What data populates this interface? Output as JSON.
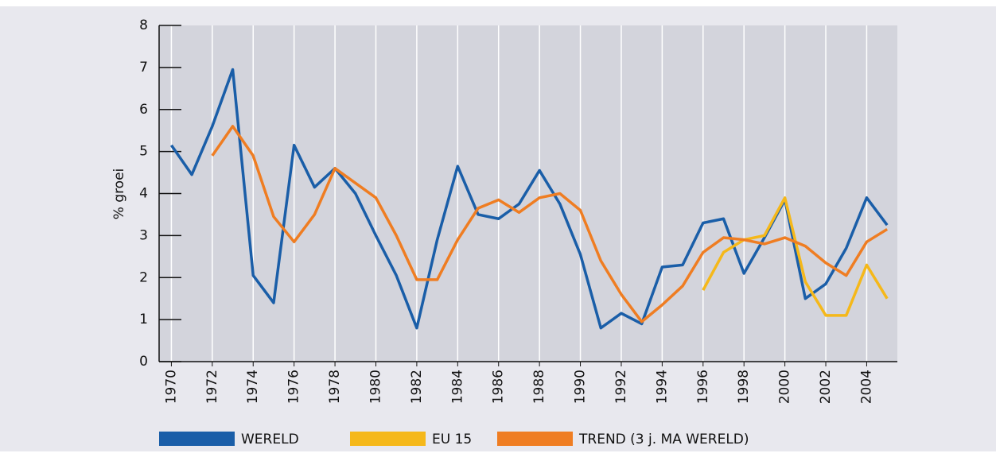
{
  "chart_data": {
    "type": "line",
    "y_label": "% groei",
    "x": [
      1970,
      1971,
      1972,
      1973,
      1974,
      1975,
      1976,
      1977,
      1978,
      1979,
      1980,
      1981,
      1982,
      1983,
      1984,
      1985,
      1986,
      1987,
      1988,
      1989,
      1990,
      1991,
      1992,
      1993,
      1994,
      1995,
      1996,
      1997,
      1998,
      1999,
      2000,
      2001,
      2002,
      2003,
      2004,
      2005
    ],
    "series": [
      {
        "name": "WERELD",
        "color": "#1a5ea8",
        "values": [
          5.15,
          4.45,
          5.6,
          6.95,
          2.05,
          1.4,
          5.15,
          4.15,
          4.6,
          4.0,
          3.0,
          2.05,
          0.8,
          2.9,
          4.65,
          3.5,
          3.4,
          3.75,
          4.55,
          3.75,
          2.55,
          0.8,
          1.15,
          0.9,
          2.25,
          2.3,
          3.3,
          3.4,
          2.1,
          2.95,
          3.85,
          1.5,
          1.85,
          2.7,
          3.9,
          3.25
        ]
      },
      {
        "name": "EU 15",
        "color": "#f5b81a",
        "values": [
          null,
          null,
          null,
          null,
          null,
          null,
          null,
          null,
          null,
          null,
          null,
          null,
          null,
          null,
          null,
          null,
          null,
          null,
          null,
          null,
          null,
          null,
          null,
          null,
          null,
          null,
          1.7,
          2.6,
          2.9,
          3.0,
          3.9,
          1.9,
          1.1,
          1.1,
          2.3,
          1.5
        ]
      },
      {
        "name": "TREND (3 j. MA WERELD)",
        "color": "#ef7d22",
        "values": [
          null,
          null,
          4.9,
          5.6,
          4.9,
          3.45,
          2.85,
          3.5,
          4.6,
          4.25,
          3.9,
          3.0,
          1.95,
          1.95,
          2.9,
          3.65,
          3.85,
          3.55,
          3.9,
          4.0,
          3.6,
          2.4,
          1.6,
          0.95,
          1.35,
          1.8,
          2.6,
          2.95,
          2.9,
          2.8,
          2.95,
          2.75,
          2.35,
          2.05,
          2.85,
          3.15
        ]
      }
    ],
    "xlim": [
      1969.4,
      2005.5
    ],
    "xticks": [
      1970,
      1972,
      1974,
      1976,
      1978,
      1980,
      1982,
      1984,
      1986,
      1988,
      1990,
      1992,
      1994,
      1996,
      1998,
      2000,
      2002,
      2004
    ],
    "ylim": [
      0,
      8
    ],
    "yticks": [
      0,
      1,
      2,
      3,
      4,
      5,
      6,
      7,
      8
    ],
    "grid": true,
    "legend": "bottom"
  }
}
